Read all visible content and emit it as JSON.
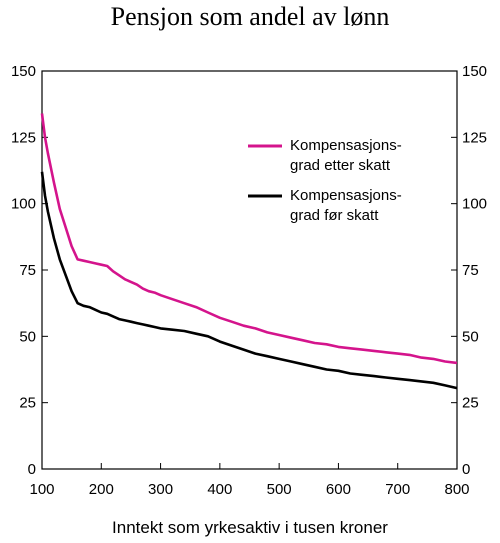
{
  "chart_data": {
    "type": "line",
    "title": "Pensjon som andel av lønn",
    "xlabel": "Inntekt som yrkesaktiv i tusen kroner",
    "ylabel": "",
    "xlim": [
      100,
      800
    ],
    "ylim": [
      0,
      150
    ],
    "x_ticks": [
      "100",
      "200",
      "300",
      "400",
      "500",
      "600",
      "700",
      "800"
    ],
    "y_ticks": [
      "0",
      "25",
      "50",
      "75",
      "100",
      "125",
      "150"
    ],
    "y_ticks_right": [
      "0",
      "25",
      "50",
      "75",
      "100",
      "125",
      "150"
    ],
    "legend_position": "top-right",
    "grid": false,
    "series": [
      {
        "name_lines": [
          "Kompensasjons-",
          "grad etter skatt"
        ],
        "color": "#d4148c",
        "x": [
          100,
          105,
          110,
          120,
          130,
          140,
          150,
          160,
          170,
          180,
          190,
          200,
          210,
          220,
          230,
          240,
          250,
          260,
          270,
          280,
          290,
          300,
          320,
          340,
          360,
          380,
          400,
          420,
          440,
          460,
          480,
          500,
          520,
          540,
          560,
          580,
          600,
          620,
          640,
          660,
          680,
          700,
          720,
          740,
          760,
          780,
          800
        ],
        "y": [
          134,
          125,
          119,
          108,
          98,
          91,
          84,
          79,
          78.5,
          78,
          77.5,
          77,
          76.5,
          74.5,
          73,
          71.5,
          70.5,
          69.5,
          68,
          67,
          66.5,
          65.5,
          64,
          62.5,
          61,
          59,
          57,
          55.5,
          54,
          53,
          51.5,
          50.5,
          49.5,
          48.5,
          47.5,
          47,
          46,
          45.5,
          45,
          44.5,
          44,
          43.5,
          43,
          42,
          41.5,
          40.5,
          40
        ]
      },
      {
        "name_lines": [
          "Kompensasjons-",
          "grad før skatt"
        ],
        "color": "#000000",
        "x": [
          100,
          105,
          110,
          120,
          130,
          140,
          150,
          160,
          170,
          180,
          190,
          200,
          210,
          220,
          230,
          240,
          250,
          260,
          270,
          280,
          290,
          300,
          320,
          340,
          360,
          380,
          400,
          420,
          440,
          460,
          480,
          500,
          520,
          540,
          560,
          580,
          600,
          620,
          640,
          660,
          680,
          700,
          720,
          740,
          760,
          780,
          800
        ],
        "y": [
          112,
          103,
          97,
          87,
          79,
          73,
          67,
          62.5,
          61.5,
          61,
          60,
          59,
          58.5,
          57.5,
          56.5,
          56,
          55.5,
          55,
          54.5,
          54,
          53.5,
          53,
          52.5,
          52,
          51,
          50,
          48,
          46.5,
          45,
          43.5,
          42.5,
          41.5,
          40.5,
          39.5,
          38.5,
          37.5,
          37,
          36,
          35.5,
          35,
          34.5,
          34,
          33.5,
          33,
          32.5,
          31.5,
          30.5
        ]
      }
    ]
  }
}
